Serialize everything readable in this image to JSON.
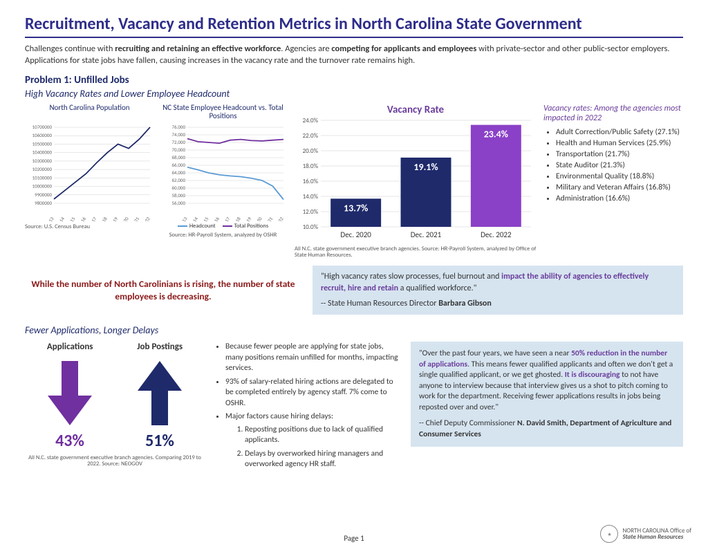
{
  "title": "Recruitment, Vacancy and Retention Metrics in North Carolina State Government",
  "intro": {
    "p1a": "Challenges continue with ",
    "p1b": "recruiting and retaining an effective workforce",
    "p1c": ". Agencies are ",
    "p1d": "competing for applicants and employees",
    "p1e": " with private-sector and other public-sector employers. Applications for state jobs have fallen, causing increases in the vacancy rate and the turnover rate remains high."
  },
  "problem1": {
    "heading": "Problem 1:  Unfilled Jobs",
    "sub": "High Vacancy Rates and Lower Employee Headcount"
  },
  "pop_chart": {
    "title": "North Carolina Population",
    "years": [
      "2013",
      "2014",
      "2015",
      "2016",
      "2017",
      "2018",
      "2019",
      "2020",
      "2021",
      "2022"
    ],
    "values": [
      9850000,
      9950000,
      10050000,
      10150000,
      10280000,
      10400000,
      10500000,
      10450000,
      10560000,
      10700000
    ],
    "ymin": 9800000,
    "ymax": 10700000,
    "ystep": 100000,
    "line_color": "#1f2a6b",
    "grid_color": "#d0d0d0",
    "axis_fontsize": 7,
    "source": "Source: U.S. Census Bureau"
  },
  "head_chart": {
    "title": "NC State Employee Headcount vs. Total Positions",
    "years": [
      "2013",
      "2014",
      "2015",
      "2016",
      "2017",
      "2018",
      "2019",
      "2020",
      "2021",
      "2022"
    ],
    "headcount": [
      65500,
      64800,
      64000,
      63500,
      63200,
      63000,
      62600,
      62000,
      60500,
      57000
    ],
    "positions": [
      73000,
      72200,
      72000,
      71800,
      72600,
      72800,
      72500,
      72400,
      72600,
      72800
    ],
    "ymin": 56000,
    "ymax": 76000,
    "ystep": 2000,
    "headcount_color": "#5b9bd5",
    "positions_color": "#7030a0",
    "grid_color": "#d0d0d0",
    "legend": {
      "a": "Headcount",
      "b": "Total Positions"
    },
    "source": "Source: HR-Payroll System, analyzed by OSHR"
  },
  "vacancy_chart": {
    "title": "Vacancy Rate",
    "bars": [
      {
        "label": "Dec. 2020",
        "value": 13.7,
        "text": "13.7%",
        "color": "#1f2a6b"
      },
      {
        "label": "Dec. 2021",
        "value": 19.1,
        "text": "19.1%",
        "color": "#1f2a6b"
      },
      {
        "label": "Dec. 2022",
        "value": 23.4,
        "text": "23.4%",
        "color": "#8a40c7"
      }
    ],
    "ymin": 10,
    "ymax": 24,
    "ystep": 2,
    "grid_color": "#cccccc",
    "label_color": "#ffffff",
    "source": "All N.C. state government executive branch agencies.  Source: HR-Payroll System, analyzed by Office of State Human Resources."
  },
  "agencies": {
    "head": "Vacancy rates: Among the agencies most impacted in 2022",
    "items": [
      "Adult Correction/Public Safety (27.1%)",
      "Health and Human Services (25.9%)",
      "Transportation (21.7%)",
      "State Auditor (21.3%)",
      "Environmental Quality (18.8%)",
      "Military and Veteran Affairs (16.8%)",
      "Administration (16.6%)"
    ]
  },
  "callout1": "While the number of North Carolinians is rising, the number of state employees is decreasing.",
  "quote1": {
    "a": "\"High vacancy rates slow processes, fuel burnout and ",
    "b": "impact the ability of agencies to effectively recruit, hire and retain",
    "c": " a qualified workforce.\"",
    "attr_a": "-- State Human Resources Director ",
    "attr_b": "Barbara Gibson"
  },
  "section2_sub": "Fewer Applications, Longer Delays",
  "arrows": {
    "labels": {
      "a": "Applications",
      "b": "Job Postings"
    },
    "down": {
      "value": "43%",
      "color": "#7030a0"
    },
    "up": {
      "value": "51%",
      "color": "#1f2a6b"
    },
    "note": "All N.C. state government executive branch agencies. Comparing 2019 to 2022.  Source: NEOGOV"
  },
  "bullets": {
    "b1": "Because fewer people are applying for state jobs, many positions remain unfilled for months, impacting services.",
    "b2": "93% of salary-related hiring actions are delegated to be completed entirely by agency staff. 7% come to OSHR.",
    "b3": "Major factors cause hiring delays:",
    "o1": "Reposting positions due to lack of qualified applicants.",
    "o2": "Delays by overworked hiring managers and overworked agency HR staff."
  },
  "quote2": {
    "a": "\"Over the past four years, we have seen a near ",
    "b": "50% reduction in the number of applications",
    "c": ". This means fewer qualified applicants and often we don't get a single qualified applicant, or we get ghosted. ",
    "d": "It is discouraging",
    "e": " to not have anyone to interview because that interview gives us a shot to pitch coming to work for the department. Receiving fewer applications results in jobs being reposted over and over.\"",
    "attr_a": "-- Chief Deputy Commissioner ",
    "attr_b": "N. David Smith, Department of Agriculture and Consumer Services"
  },
  "footer": {
    "page": "Page 1",
    "org1": "NORTH CAROLINA Office of",
    "org2": "State Human Resources"
  }
}
